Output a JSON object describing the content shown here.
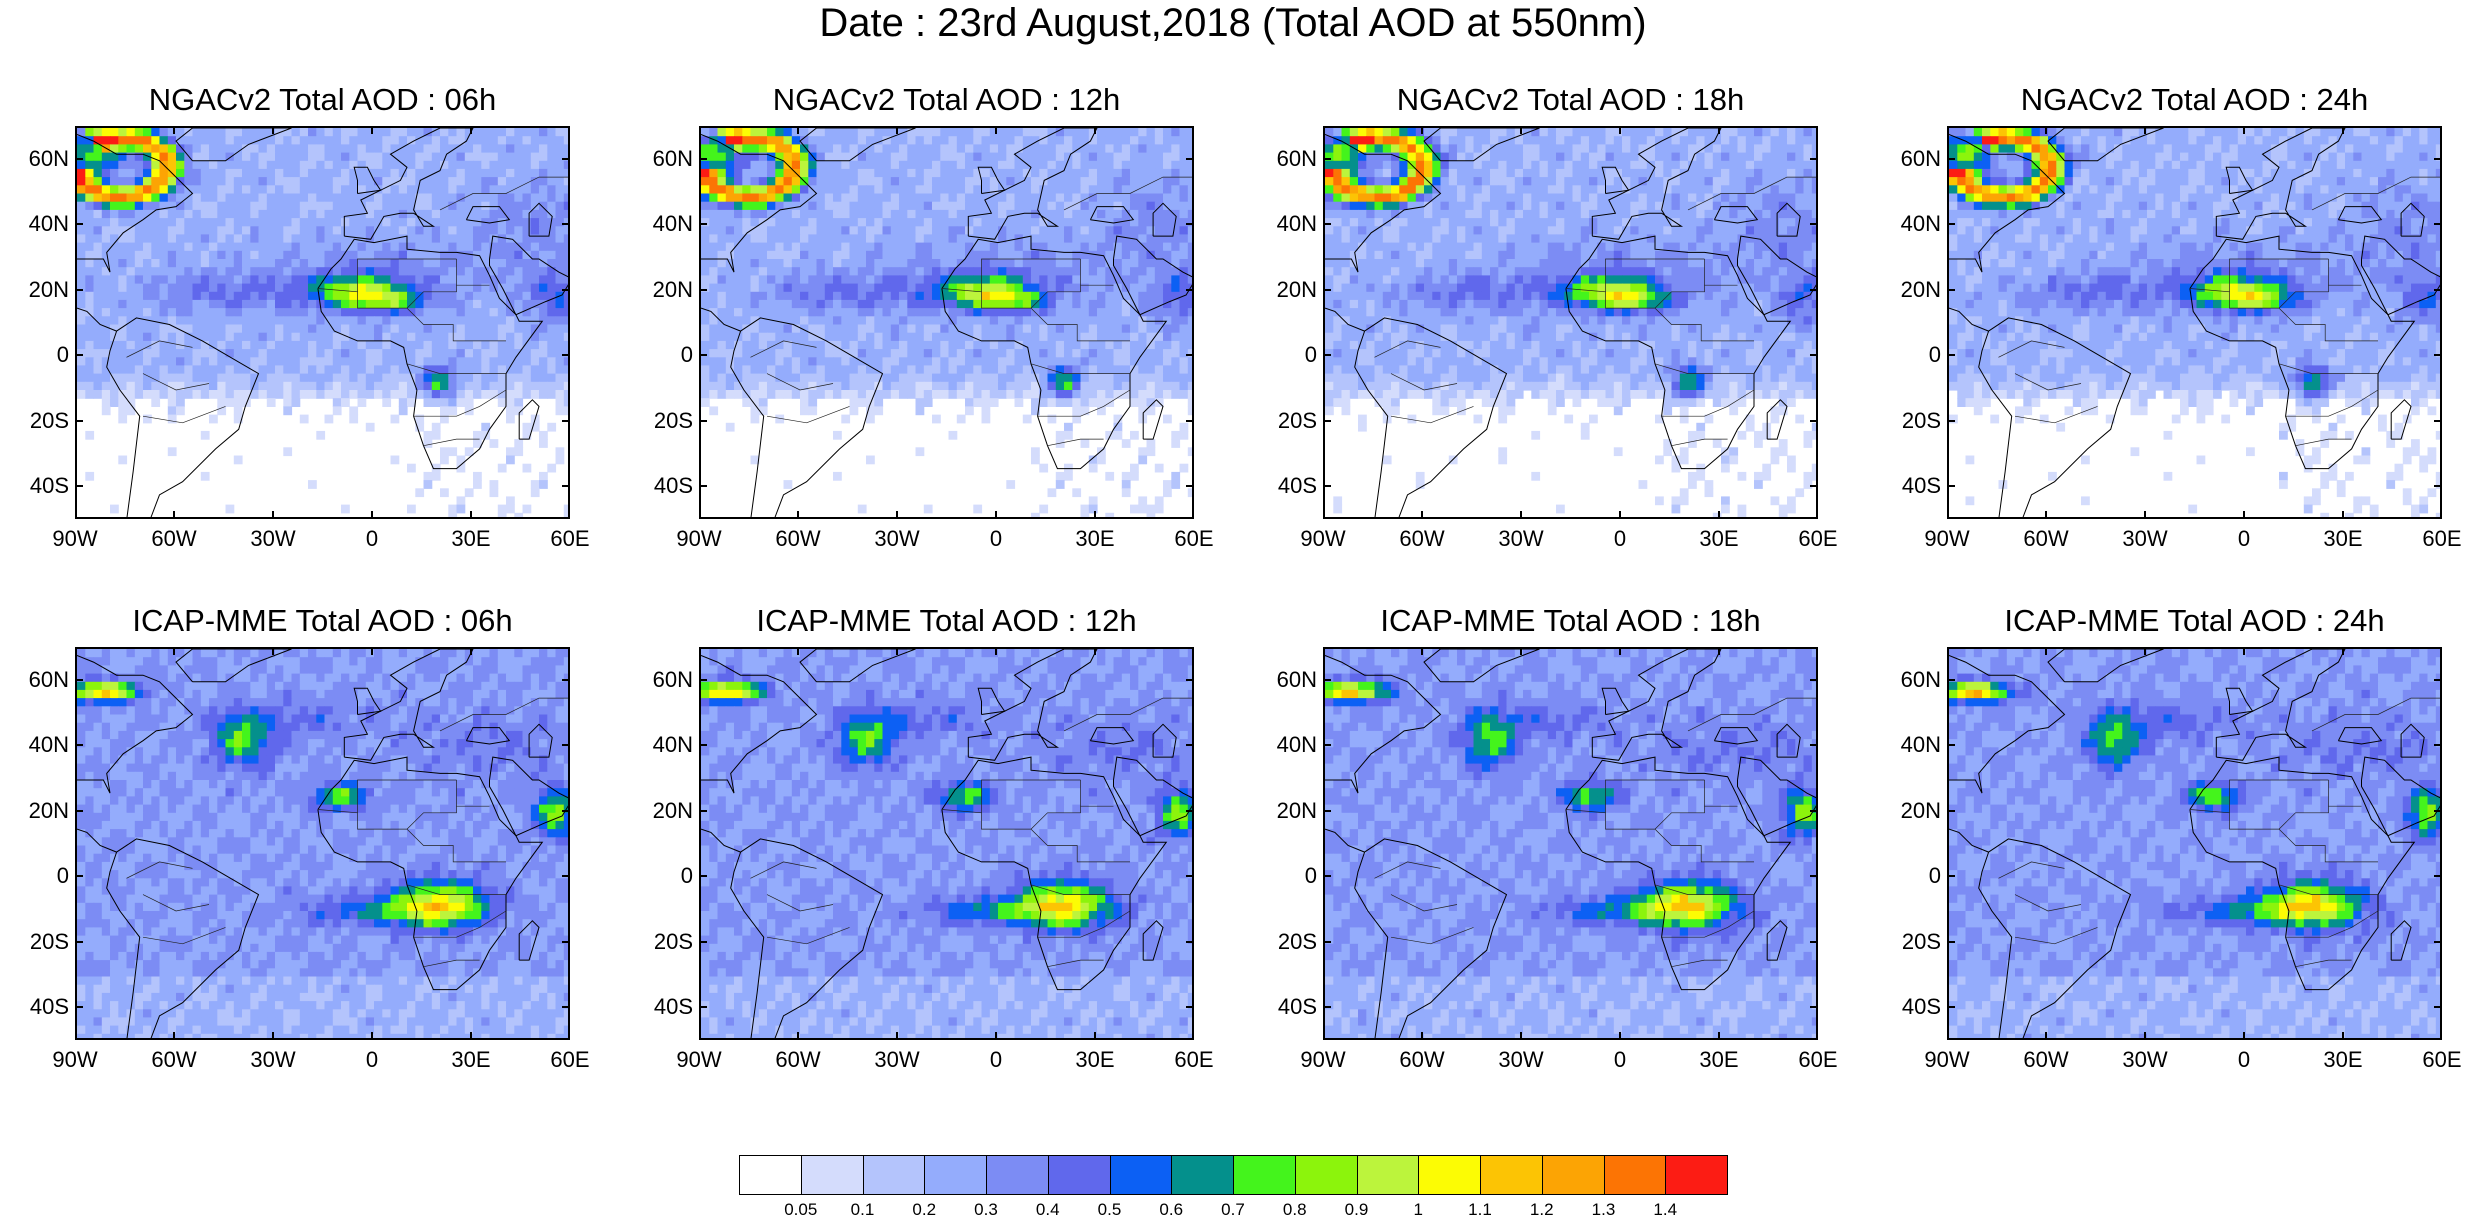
{
  "title": "Date : 23rd August,2018 (Total AOD at 550nm)",
  "panels": [
    {
      "title": "NGACv2 Total AOD : 06h",
      "model": "ngac",
      "hour": 6
    },
    {
      "title": "NGACv2 Total AOD : 12h",
      "model": "ngac",
      "hour": 12
    },
    {
      "title": "NGACv2 Total AOD : 18h",
      "model": "ngac",
      "hour": 18
    },
    {
      "title": "NGACv2 Total AOD : 24h",
      "model": "ngac",
      "hour": 24
    },
    {
      "title": "ICAP-MME Total AOD : 06h",
      "model": "icap",
      "hour": 6
    },
    {
      "title": "ICAP-MME Total AOD : 12h",
      "model": "icap",
      "hour": 12
    },
    {
      "title": "ICAP-MME Total AOD : 18h",
      "model": "icap",
      "hour": 18
    },
    {
      "title": "ICAP-MME Total AOD : 24h",
      "model": "icap",
      "hour": 24
    }
  ],
  "axes": {
    "lat_labels": [
      "60N",
      "40N",
      "20N",
      "0",
      "20S",
      "40S"
    ],
    "lon_labels": [
      "90W",
      "60W",
      "30W",
      "0",
      "30E",
      "60E"
    ],
    "lon_range": [
      -90,
      60
    ],
    "lat_range": [
      -50,
      70
    ]
  },
  "colorbar": {
    "labels": [
      "0.05",
      "0.1",
      "0.2",
      "0.3",
      "0.4",
      "0.5",
      "0.6",
      "0.7",
      "0.8",
      "0.9",
      "1",
      "1.1",
      "1.2",
      "1.3",
      "1.4"
    ],
    "colors": [
      "#ffffff",
      "#d4dcfc",
      "#b4c4fc",
      "#94acfc",
      "#7c8cf4",
      "#6068ec",
      "#0c60f4",
      "#04908c",
      "#44f41c",
      "#8cf40c",
      "#bcf43c",
      "#fcfc04",
      "#fcc404",
      "#fca404",
      "#fc7404",
      "#fc1c14"
    ]
  }
}
